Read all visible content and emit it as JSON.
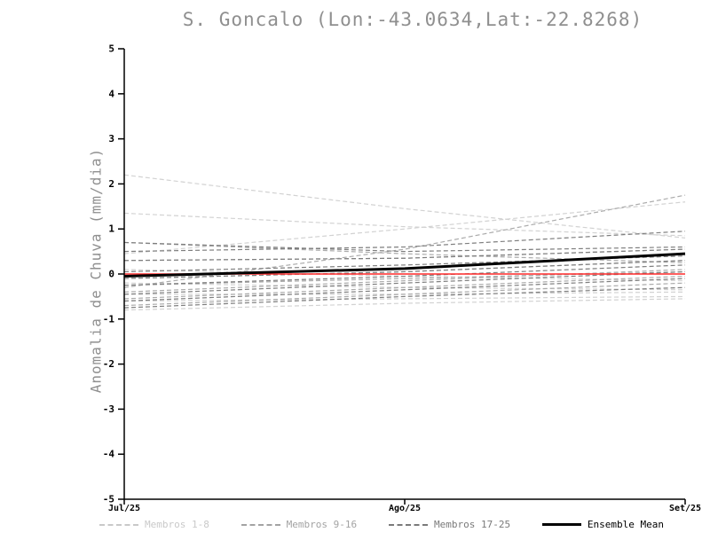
{
  "title": "S. Goncalo (Lon:-43.0634,Lat:-22.8268)",
  "chart_data": {
    "type": "line",
    "x": [
      "Jul/25",
      "Ago/25",
      "Set/25"
    ],
    "ylabel": "Anomalia de Chuva (mm/dia)",
    "ylim": [
      -5,
      5
    ],
    "yticks": [
      -5,
      -4,
      -3,
      -2,
      -1,
      0,
      1,
      2,
      3,
      4,
      5
    ],
    "grid": false,
    "groups": [
      {
        "name": "Membros 1-8",
        "color": "#d2d2d2",
        "style": "dashed",
        "members": [
          [
            2.2,
            1.45,
            0.8
          ],
          [
            1.35,
            1.05,
            0.85
          ],
          [
            0.1,
            -0.05,
            -0.15
          ],
          [
            -0.2,
            -0.3,
            -0.35
          ],
          [
            -0.45,
            -0.45,
            -0.4
          ],
          [
            -0.6,
            -0.55,
            -0.5
          ],
          [
            -0.8,
            -0.65,
            -0.55
          ],
          [
            0.45,
            1.0,
            1.6
          ]
        ]
      },
      {
        "name": "Membros 9-16",
        "color": "#ababab",
        "style": "dashed",
        "members": [
          [
            0.7,
            0.45,
            0.25
          ],
          [
            0.3,
            0.35,
            0.55
          ],
          [
            -0.1,
            0.05,
            0.3
          ],
          [
            -0.25,
            -0.1,
            0.05
          ],
          [
            -0.4,
            -0.15,
            0.1
          ],
          [
            -0.55,
            -0.3,
            -0.05
          ],
          [
            -0.7,
            -0.45,
            -0.2
          ],
          [
            -0.3,
            0.55,
            1.75
          ]
        ]
      },
      {
        "name": "Membros 17-25",
        "color": "#7e7e7e",
        "style": "dashed",
        "members": [
          [
            0.7,
            0.5,
            0.6
          ],
          [
            0.3,
            0.35,
            0.55
          ],
          [
            0.05,
            0.2,
            0.4
          ],
          [
            -0.1,
            0.05,
            0.3
          ],
          [
            -0.25,
            -0.05,
            0.2
          ],
          [
            -0.45,
            -0.2,
            0.05
          ],
          [
            -0.6,
            -0.35,
            -0.1
          ],
          [
            -0.75,
            -0.5,
            -0.3
          ],
          [
            0.5,
            0.6,
            0.95
          ]
        ]
      }
    ],
    "zero_line": {
      "color": "#ff2a2a",
      "values": [
        0,
        0,
        0
      ]
    },
    "ensemble_mean": {
      "name": "Ensemble Mean",
      "color": "#000000",
      "values": [
        -0.05,
        0.12,
        0.45
      ]
    }
  },
  "legend": {
    "items": [
      {
        "label": "Membros 1-8",
        "color": "#c9c9c9",
        "style": "dashed"
      },
      {
        "label": "Membros 9-16",
        "color": "#a3a3a3",
        "style": "dashed"
      },
      {
        "label": "Membros 17-25",
        "color": "#7a7a7a",
        "style": "dashed"
      },
      {
        "label": "Ensemble Mean",
        "color": "#000000",
        "style": "solid"
      }
    ]
  }
}
